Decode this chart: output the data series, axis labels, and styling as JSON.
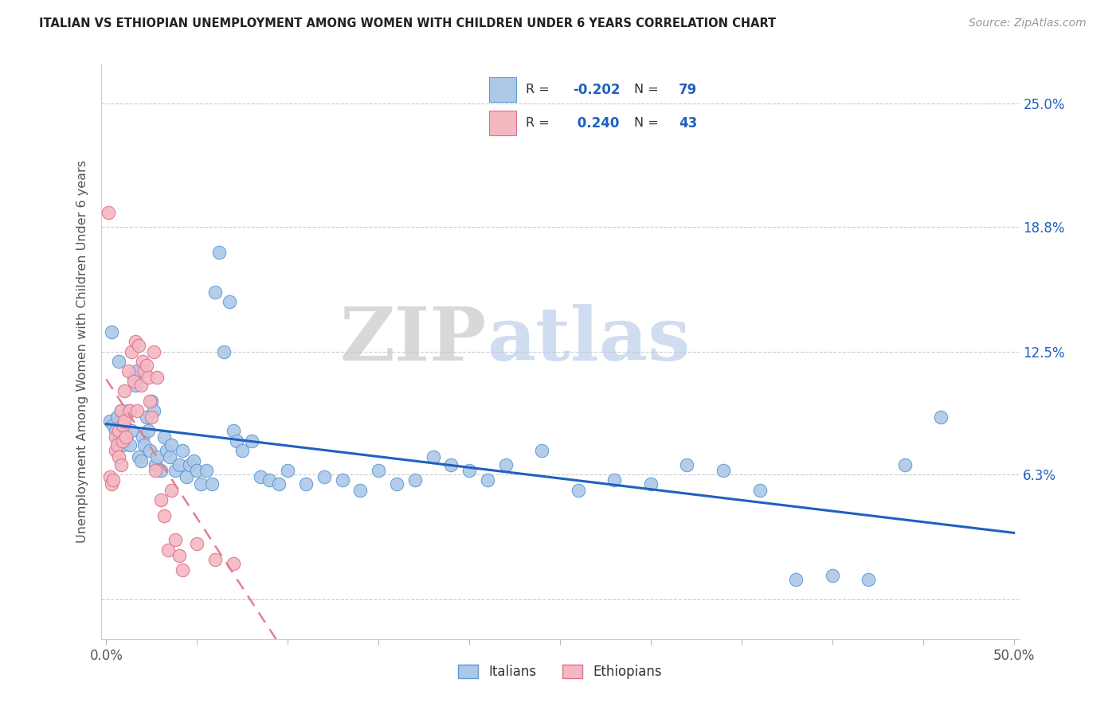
{
  "title": "ITALIAN VS ETHIOPIAN UNEMPLOYMENT AMONG WOMEN WITH CHILDREN UNDER 6 YEARS CORRELATION CHART",
  "source": "Source: ZipAtlas.com",
  "ylabel": "Unemployment Among Women with Children Under 6 years",
  "xlim": [
    0.0,
    0.5
  ],
  "ylim": [
    -0.02,
    0.27
  ],
  "ytick_values": [
    0.0,
    0.063,
    0.125,
    0.188,
    0.25
  ],
  "ytick_labels_right": [
    "",
    "6.3%",
    "12.5%",
    "18.8%",
    "25.0%"
  ],
  "italian_fill": "#aec8e8",
  "italian_edge": "#5b9bd5",
  "ethiopian_fill": "#f4b8c1",
  "ethiopian_edge": "#e07090",
  "italian_line_color": "#2060c0",
  "ethiopian_line_color": "#e08090",
  "R_italian": -0.202,
  "N_italian": 79,
  "R_ethiopian": 0.24,
  "N_ethiopian": 43,
  "watermark_zip": "ZIP",
  "watermark_atlas": "atlas",
  "legend_italian": "Italians",
  "legend_ethiopian": "Ethiopians",
  "legend_r_color": "#2060c0",
  "legend_n_color": "#2060c0",
  "grid_color": "#cccccc",
  "italian_x": [
    0.002,
    0.004,
    0.005,
    0.006,
    0.007,
    0.008,
    0.009,
    0.01,
    0.011,
    0.012,
    0.013,
    0.014,
    0.015,
    0.016,
    0.017,
    0.018,
    0.019,
    0.02,
    0.021,
    0.022,
    0.023,
    0.024,
    0.025,
    0.026,
    0.027,
    0.028,
    0.03,
    0.032,
    0.033,
    0.035,
    0.036,
    0.038,
    0.04,
    0.042,
    0.044,
    0.046,
    0.048,
    0.05,
    0.052,
    0.055,
    0.058,
    0.06,
    0.062,
    0.065,
    0.068,
    0.07,
    0.072,
    0.075,
    0.08,
    0.085,
    0.09,
    0.095,
    0.1,
    0.11,
    0.12,
    0.13,
    0.14,
    0.15,
    0.16,
    0.17,
    0.18,
    0.19,
    0.2,
    0.21,
    0.22,
    0.24,
    0.26,
    0.28,
    0.3,
    0.32,
    0.34,
    0.36,
    0.38,
    0.4,
    0.42,
    0.44,
    0.46,
    0.003,
    0.007
  ],
  "italian_y": [
    0.09,
    0.088,
    0.085,
    0.092,
    0.082,
    0.095,
    0.078,
    0.088,
    0.082,
    0.095,
    0.078,
    0.085,
    0.112,
    0.108,
    0.115,
    0.072,
    0.07,
    0.082,
    0.078,
    0.092,
    0.085,
    0.075,
    0.1,
    0.095,
    0.068,
    0.072,
    0.065,
    0.082,
    0.075,
    0.072,
    0.078,
    0.065,
    0.068,
    0.075,
    0.062,
    0.068,
    0.07,
    0.065,
    0.058,
    0.065,
    0.058,
    0.155,
    0.175,
    0.125,
    0.15,
    0.085,
    0.08,
    0.075,
    0.08,
    0.062,
    0.06,
    0.058,
    0.065,
    0.058,
    0.062,
    0.06,
    0.055,
    0.065,
    0.058,
    0.06,
    0.072,
    0.068,
    0.065,
    0.06,
    0.068,
    0.075,
    0.055,
    0.06,
    0.058,
    0.068,
    0.065,
    0.055,
    0.01,
    0.012,
    0.01,
    0.068,
    0.092,
    0.135,
    0.12
  ],
  "ethiopian_x": [
    0.001,
    0.002,
    0.003,
    0.004,
    0.005,
    0.005,
    0.006,
    0.007,
    0.007,
    0.008,
    0.008,
    0.009,
    0.009,
    0.01,
    0.01,
    0.011,
    0.012,
    0.013,
    0.014,
    0.015,
    0.016,
    0.017,
    0.018,
    0.019,
    0.02,
    0.021,
    0.022,
    0.023,
    0.024,
    0.025,
    0.026,
    0.027,
    0.028,
    0.03,
    0.032,
    0.034,
    0.036,
    0.038,
    0.04,
    0.042,
    0.05,
    0.06,
    0.07
  ],
  "ethiopian_y": [
    0.195,
    0.062,
    0.058,
    0.06,
    0.082,
    0.075,
    0.078,
    0.072,
    0.085,
    0.068,
    0.095,
    0.08,
    0.088,
    0.09,
    0.105,
    0.082,
    0.115,
    0.095,
    0.125,
    0.11,
    0.13,
    0.095,
    0.128,
    0.108,
    0.12,
    0.115,
    0.118,
    0.112,
    0.1,
    0.092,
    0.125,
    0.065,
    0.112,
    0.05,
    0.042,
    0.025,
    0.055,
    0.03,
    0.022,
    0.015,
    0.028,
    0.02,
    0.018
  ]
}
